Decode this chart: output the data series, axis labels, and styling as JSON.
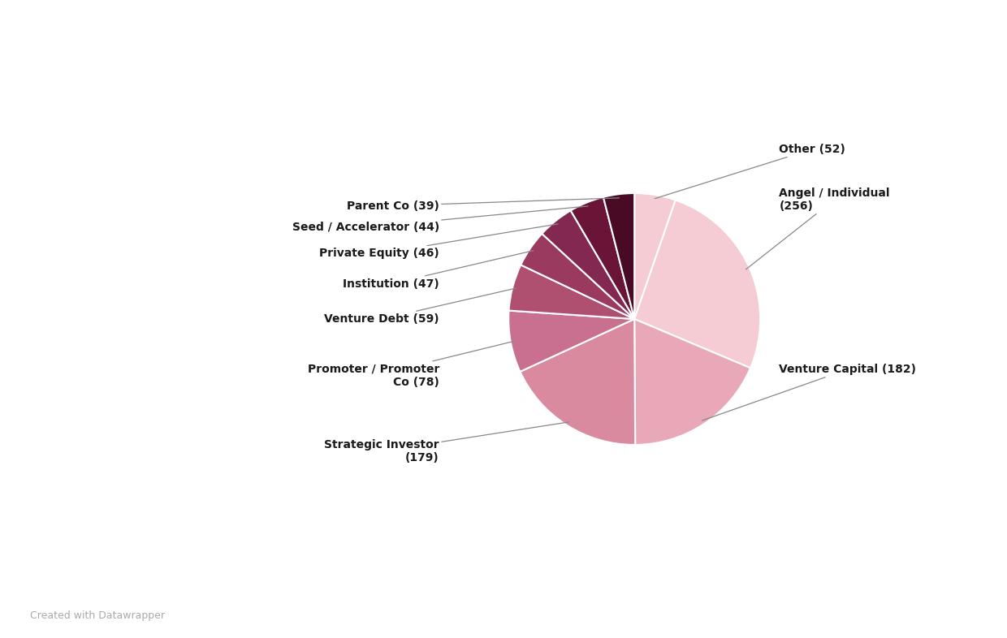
{
  "watermark": "Created with Datawrapper",
  "categories": [
    "Other",
    "Angel / Individual",
    "Venture Capital",
    "Strategic Investor",
    "Promoter / Promoter\nCo",
    "Venture Debt",
    "Institution",
    "Private Equity",
    "Seed / Accelerator",
    "Parent Co"
  ],
  "values": [
    52,
    256,
    182,
    179,
    78,
    59,
    47,
    46,
    44,
    39
  ],
  "colors": [
    "#f5ccd4",
    "#f5ccd4",
    "#e8a8b8",
    "#d98a9e",
    "#c97090",
    "#b05070",
    "#9a3a5e",
    "#832850",
    "#6a1538",
    "#480a24"
  ],
  "background_color": "#ffffff"
}
